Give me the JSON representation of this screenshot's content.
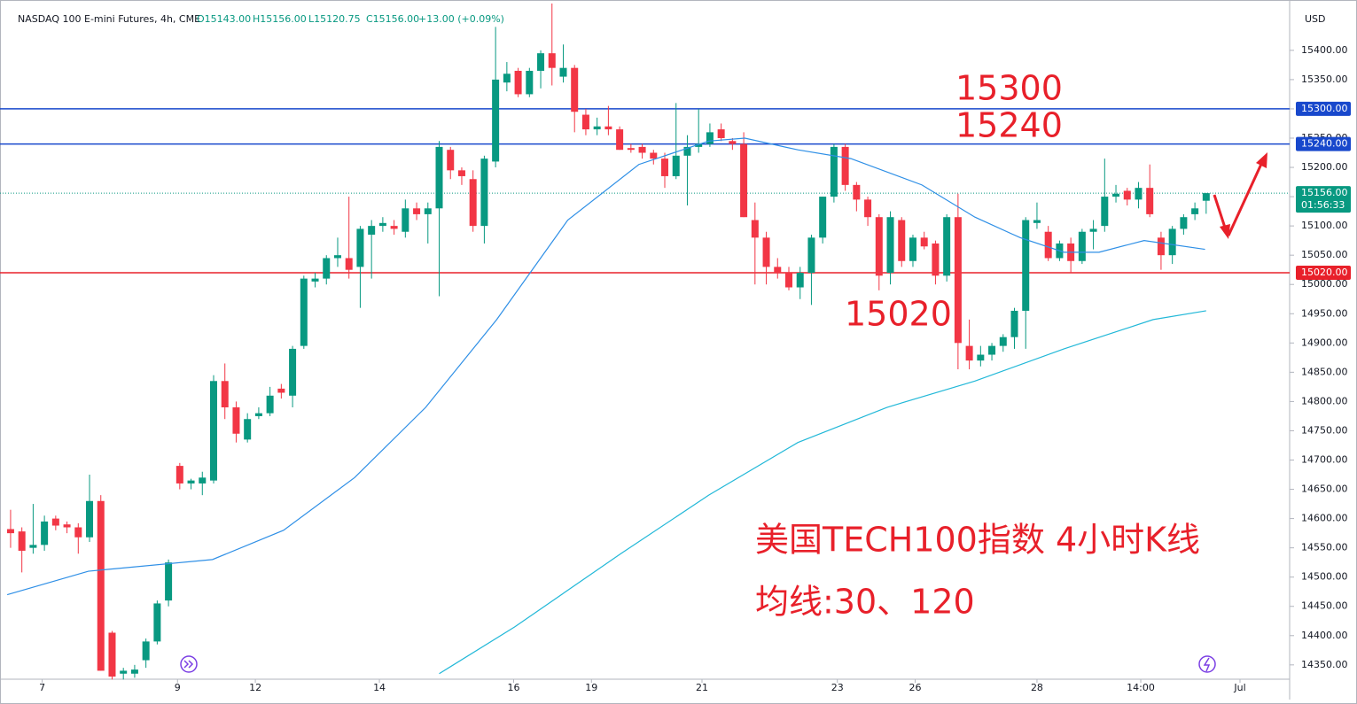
{
  "chart_data": {
    "type": "candlestick",
    "symbol": "NASDAQ 100 E-mini Futures, 4h, CME",
    "ohlc": [
      "O15143.00",
      "H15156.00",
      "L15120.75",
      "C15156.00",
      "+13.00 (+0.09%)"
    ],
    "currency": "USD",
    "up_color": "#089981",
    "down_color": "#f23645",
    "ylim": [
      14321,
      15486
    ],
    "yticks": [
      {
        "value": 15400,
        "label": "15400.00"
      },
      {
        "value": 15350,
        "label": "15350.00"
      },
      {
        "value": 15300,
        "label": "15300.00"
      },
      {
        "value": 15250,
        "label": "15250.00"
      },
      {
        "value": 15200,
        "label": "15200.00"
      },
      {
        "value": 15150,
        "label": "15150.00"
      },
      {
        "value": 15100,
        "label": "15100.00"
      },
      {
        "value": 15050,
        "label": "15050.00"
      },
      {
        "value": 15000,
        "label": "15000.00"
      },
      {
        "value": 14950,
        "label": "14950.00"
      },
      {
        "value": 14900,
        "label": "14900.00"
      },
      {
        "value": 14850,
        "label": "14850.00"
      },
      {
        "value": 14800,
        "label": "14800.00"
      },
      {
        "value": 14750,
        "label": "14750.00"
      },
      {
        "value": 14700,
        "label": "14700.00"
      },
      {
        "value": 14650,
        "label": "14650.00"
      },
      {
        "value": 14600,
        "label": "14600.00"
      },
      {
        "value": 14550,
        "label": "14550.00"
      },
      {
        "value": 14500,
        "label": "14500.00"
      },
      {
        "value": 14450,
        "label": "14450.00"
      },
      {
        "value": 14400,
        "label": "14400.00"
      },
      {
        "value": 14350,
        "label": "14350.00"
      }
    ],
    "xlim": [
      -0.31,
      113.4
    ],
    "xticks": [
      {
        "value": 2.8,
        "label": "7"
      },
      {
        "value": 14.8,
        "label": "9"
      },
      {
        "value": 21.7,
        "label": "12"
      },
      {
        "value": 32.7,
        "label": "14"
      },
      {
        "value": 44.6,
        "label": "16"
      },
      {
        "value": 51.5,
        "label": "19"
      },
      {
        "value": 61.3,
        "label": "21"
      },
      {
        "value": 73.3,
        "label": "23"
      },
      {
        "value": 80.2,
        "label": "26"
      },
      {
        "value": 91.0,
        "label": "28"
      },
      {
        "value": 100.2,
        "label": "14:00"
      },
      {
        "value": 109.0,
        "label": "Jul"
      }
    ],
    "candles": [
      [
        14582,
        14615,
        14550,
        14575
      ],
      [
        14578,
        14585,
        14508,
        14545
      ],
      [
        14550,
        14625,
        14540,
        14555
      ],
      [
        14555,
        14605,
        14545,
        14595
      ],
      [
        14600,
        14605,
        14580,
        14588
      ],
      [
        14590,
        14595,
        14575,
        14585
      ],
      [
        14585,
        14592,
        14540,
        14568
      ],
      [
        14568,
        14675,
        14560,
        14630
      ],
      [
        14630,
        14640,
        14340,
        14340
      ],
      [
        14405,
        14408,
        14325,
        14330
      ],
      [
        14335,
        14345,
        14325,
        14340
      ],
      [
        14335,
        14350,
        14328,
        14342
      ],
      [
        14358,
        14395,
        14345,
        14390
      ],
      [
        14390,
        14460,
        14385,
        14455
      ],
      [
        14460,
        14530,
        14450,
        14525
      ],
      [
        14690,
        14695,
        14650,
        14660
      ],
      [
        14660,
        14668,
        14650,
        14665
      ],
      [
        14660,
        14680,
        14640,
        14670
      ],
      [
        14665,
        14845,
        14660,
        14835
      ],
      [
        14835,
        14865,
        14770,
        14790
      ],
      [
        14790,
        14800,
        14730,
        14745
      ],
      [
        14735,
        14780,
        14730,
        14770
      ],
      [
        14775,
        14790,
        14770,
        14780
      ],
      [
        14780,
        14825,
        14775,
        14810
      ],
      [
        14822,
        14830,
        14805,
        14815
      ],
      [
        14810,
        14895,
        14790,
        14890
      ],
      [
        14895,
        15015,
        14890,
        15010
      ],
      [
        15005,
        15020,
        14995,
        15010
      ],
      [
        15010,
        15050,
        15000,
        15045
      ],
      [
        15045,
        15080,
        15030,
        15050
      ],
      [
        15045,
        15150,
        15010,
        15025
      ],
      [
        15030,
        15100,
        14960,
        15095
      ],
      [
        15085,
        15110,
        15010,
        15100
      ],
      [
        15100,
        15115,
        15090,
        15105
      ],
      [
        15100,
        15110,
        15085,
        15095
      ],
      [
        15090,
        15145,
        15080,
        15130
      ],
      [
        15130,
        15140,
        15110,
        15120
      ],
      [
        15120,
        15140,
        15070,
        15130
      ],
      [
        15130,
        15245,
        14980,
        15235
      ],
      [
        15230,
        15235,
        15180,
        15195
      ],
      [
        15195,
        15200,
        15170,
        15185
      ],
      [
        15180,
        15195,
        15090,
        15100
      ],
      [
        15100,
        15220,
        15070,
        15215
      ],
      [
        15210,
        15440,
        15200,
        15350
      ],
      [
        15345,
        15380,
        15330,
        15360
      ],
      [
        15365,
        15370,
        15320,
        15325
      ],
      [
        15325,
        15370,
        15320,
        15365
      ],
      [
        15365,
        15400,
        15335,
        15395
      ],
      [
        15395,
        15480,
        15340,
        15370
      ],
      [
        15355,
        15410,
        15345,
        15370
      ],
      [
        15370,
        15375,
        15260,
        15295
      ],
      [
        15290,
        15300,
        15255,
        15265
      ],
      [
        15265,
        15285,
        15255,
        15270
      ],
      [
        15270,
        15305,
        15255,
        15265
      ],
      [
        15265,
        15270,
        15230,
        15230
      ],
      [
        15233,
        15240,
        15225,
        15230
      ],
      [
        15235,
        15240,
        15215,
        15225
      ],
      [
        15225,
        15230,
        15205,
        15215
      ],
      [
        15215,
        15225,
        15165,
        15185
      ],
      [
        15185,
        15310,
        15180,
        15220
      ],
      [
        15220,
        15255,
        15135,
        15235
      ],
      [
        15235,
        15300,
        15225,
        15240
      ],
      [
        15240,
        15275,
        15235,
        15260
      ],
      [
        15265,
        15275,
        15245,
        15250
      ],
      [
        15245,
        15250,
        15230,
        15240
      ],
      [
        15240,
        15260,
        15115,
        15115
      ],
      [
        15110,
        15140,
        15000,
        15080
      ],
      [
        15080,
        15090,
        15000,
        15030
      ],
      [
        15030,
        15045,
        15010,
        15020
      ],
      [
        15020,
        15030,
        14990,
        14995
      ],
      [
        14995,
        15030,
        14975,
        15020
      ],
      [
        15020,
        15085,
        14965,
        15080
      ],
      [
        15080,
        15150,
        15070,
        15150
      ],
      [
        15150,
        15240,
        15140,
        15235
      ],
      [
        15235,
        15240,
        15160,
        15170
      ],
      [
        15170,
        15175,
        15125,
        15145
      ],
      [
        15145,
        15150,
        15100,
        15115
      ],
      [
        15115,
        15120,
        14990,
        15015
      ],
      [
        15020,
        15125,
        15000,
        15115
      ],
      [
        15110,
        15115,
        15030,
        15040
      ],
      [
        15040,
        15085,
        15030,
        15080
      ],
      [
        15080,
        15090,
        15060,
        15065
      ],
      [
        15070,
        15075,
        15000,
        15015
      ],
      [
        15015,
        15120,
        15005,
        15115
      ],
      [
        15115,
        15155,
        14855,
        14900
      ],
      [
        14895,
        14940,
        14855,
        14870
      ],
      [
        14870,
        14895,
        14860,
        14880
      ],
      [
        14880,
        14900,
        14870,
        14895
      ],
      [
        14895,
        14915,
        14885,
        14910
      ],
      [
        14910,
        14960,
        14890,
        14955
      ],
      [
        14955,
        15115,
        14890,
        15110
      ],
      [
        15105,
        15140,
        15095,
        15110
      ],
      [
        15090,
        15100,
        15040,
        15045
      ],
      [
        15045,
        15075,
        15040,
        15070
      ],
      [
        15070,
        15080,
        15020,
        15040
      ],
      [
        15040,
        15095,
        15035,
        15090
      ],
      [
        15090,
        15110,
        15060,
        15095
      ],
      [
        15100,
        15215,
        15090,
        15150
      ],
      [
        15150,
        15170,
        15140,
        15155
      ],
      [
        15160,
        15165,
        15135,
        15145
      ],
      [
        15145,
        15175,
        15130,
        15165
      ],
      [
        15165,
        15205,
        15115,
        15120
      ],
      [
        15080,
        15090,
        15025,
        15050
      ],
      [
        15050,
        15100,
        15035,
        15095
      ],
      [
        15095,
        15120,
        15085,
        15115
      ],
      [
        15120,
        15140,
        15110,
        15130
      ],
      [
        15143,
        15156,
        15120.75,
        15156
      ]
    ],
    "series": [
      {
        "color": "#2e8fe6",
        "x": [
          -0.3,
          6.9,
          17.9,
          24.2,
          30.5,
          36.8,
          43.1,
          49.4,
          55.7,
          61.9,
          65.1,
          69.8,
          74.5,
          80.8,
          85.5,
          89.5,
          93.4,
          96.5,
          100.5,
          105.9
        ],
        "values": [
          14470,
          14510,
          14530,
          14580,
          14670,
          14790,
          14940,
          15110,
          15205,
          15245,
          15250,
          15230,
          15215,
          15170,
          15115,
          15080,
          15055,
          15055,
          15075,
          15060
        ]
      },
      {
        "color": "#22b8d8",
        "x": [
          38.0,
          44.7,
          54.1,
          61.9,
          69.8,
          77.7,
          85.5,
          93.4,
          101.3,
          106.0
        ],
        "values": [
          14335,
          14415,
          14540,
          14640,
          14730,
          14790,
          14835,
          14890,
          14940,
          14955
        ]
      }
    ],
    "levels": [
      {
        "value": 15300,
        "label": "15300.00",
        "color": "#1848cc"
      },
      {
        "value": 15240,
        "label": "15240.00",
        "color": "#1848cc"
      },
      {
        "value": 15020,
        "label": "15020.00",
        "color": "#e8202a"
      }
    ],
    "last_price": {
      "value": 15156,
      "label": "15156.00",
      "countdown": "01:56:33",
      "color": "#089981"
    },
    "annotations": [
      "15300",
      "15240",
      "15020",
      "美国TECH100指数 4小时K线",
      "均线:30、120"
    ]
  }
}
